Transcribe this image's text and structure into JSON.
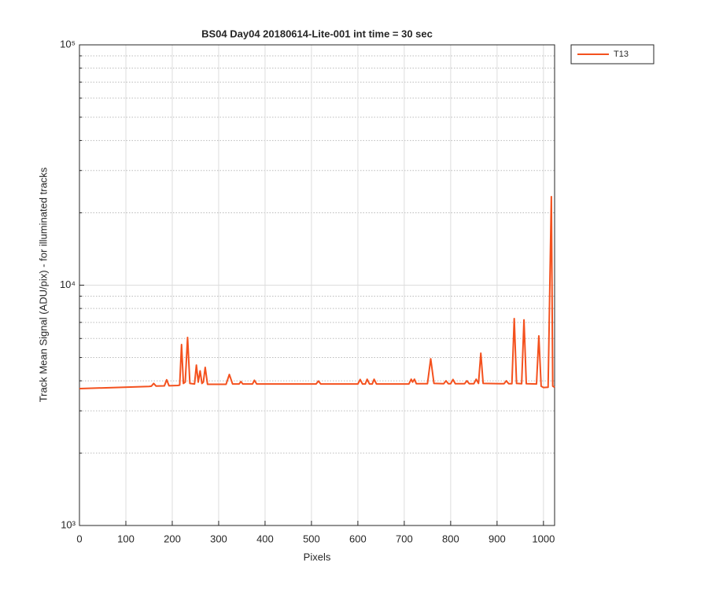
{
  "chart_data": {
    "type": "line",
    "title": "BS04 Day04 20180614-Lite-001 int time = 30 sec",
    "x_label": "Pixels",
    "y_label": "Track Mean Signal (ADU/pix) - for illuminated tracks",
    "x": [
      0,
      150,
      155,
      160,
      165,
      183,
      188,
      193,
      212,
      216,
      220,
      224,
      228,
      233,
      238,
      248,
      252,
      256,
      260,
      264,
      267,
      271,
      276,
      316,
      323,
      330,
      344,
      348,
      352,
      373,
      377,
      382,
      510,
      515,
      520,
      600,
      605,
      610,
      616,
      620,
      625,
      631,
      635,
      640,
      710,
      715,
      718,
      722,
      726,
      750,
      757,
      764,
      785,
      790,
      795,
      800,
      805,
      810,
      830,
      835,
      840,
      850,
      855,
      860,
      865,
      870,
      915,
      920,
      925,
      932,
      937,
      942,
      953,
      958,
      963,
      985,
      990,
      995,
      1000,
      1010,
      1017,
      1020,
      1024
    ],
    "series": [
      {
        "name": "T13",
        "color": "#f4511e",
        "values": [
          3711,
          3790,
          3800,
          3900,
          3805,
          3810,
          4040,
          3815,
          3825,
          3840,
          5660,
          3900,
          3950,
          6060,
          3900,
          3880,
          4650,
          3950,
          4400,
          3900,
          3950,
          4550,
          3870,
          3870,
          4250,
          3880,
          3880,
          3970,
          3880,
          3880,
          4020,
          3880,
          3880,
          3990,
          3880,
          3880,
          4050,
          3880,
          3880,
          4060,
          3880,
          3880,
          4060,
          3880,
          3880,
          4060,
          3950,
          4060,
          3890,
          3890,
          4940,
          3900,
          3890,
          4000,
          3890,
          3890,
          4050,
          3890,
          3890,
          4000,
          3890,
          3890,
          4060,
          3900,
          5210,
          3900,
          3890,
          4000,
          3890,
          3890,
          7260,
          3900,
          3890,
          7170,
          3890,
          3880,
          6150,
          3800,
          3750,
          3760,
          23350,
          3800,
          3760
        ]
      }
    ],
    "xlim": [
      0,
      1024
    ],
    "xticks": [
      0,
      100,
      200,
      300,
      400,
      500,
      600,
      700,
      800,
      900,
      1000
    ],
    "ylim": [
      1000,
      100000
    ],
    "yticks": [
      {
        "value": 1000,
        "label": "10³"
      },
      {
        "value": 10000,
        "label": "10⁴"
      },
      {
        "value": 100000,
        "label": "10⁵"
      }
    ],
    "yminorticks": [
      2000,
      3000,
      4000,
      5000,
      6000,
      7000,
      8000,
      9000,
      20000,
      30000,
      40000,
      50000,
      60000,
      70000,
      80000,
      90000
    ],
    "y_scale": "log",
    "grid": true,
    "legend_position": "northeastoutside"
  }
}
